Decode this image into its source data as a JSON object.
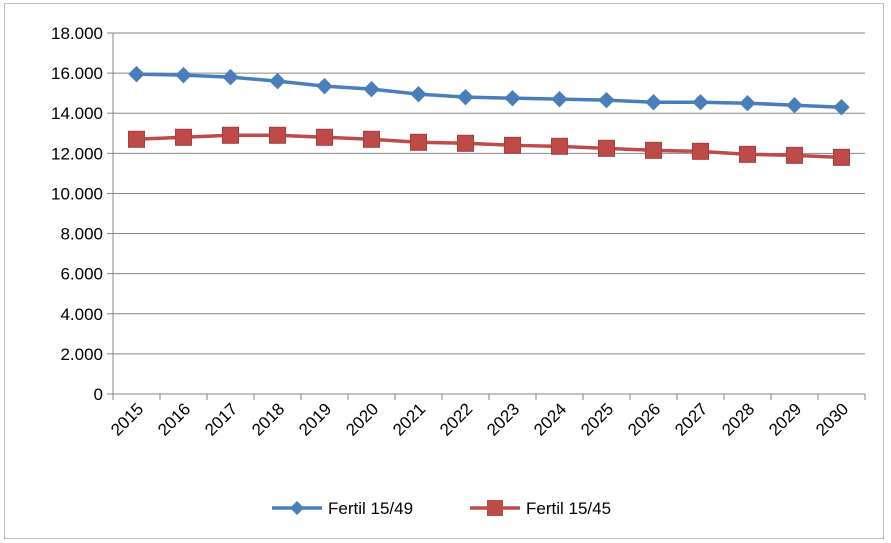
{
  "chart_data": {
    "type": "line",
    "title": "",
    "xlabel": "",
    "ylabel": "",
    "x": [
      "2015",
      "2016",
      "2017",
      "2018",
      "2019",
      "2020",
      "2021",
      "2022",
      "2023",
      "2024",
      "2025",
      "2026",
      "2027",
      "2028",
      "2029",
      "2030"
    ],
    "ylim": [
      0,
      18000
    ],
    "yticks": [
      "0",
      "2.000",
      "4.000",
      "6.000",
      "8.000",
      "10.000",
      "12.000",
      "14.000",
      "16.000",
      "18.000"
    ],
    "ytick_values": [
      0,
      2000,
      4000,
      6000,
      8000,
      10000,
      12000,
      14000,
      16000,
      18000
    ],
    "grid": true,
    "legend_position": "bottom",
    "series": [
      {
        "name": "Fertil 15/49",
        "color": "#4a7ebb",
        "marker": "diamond",
        "values": [
          15950,
          15900,
          15800,
          15600,
          15350,
          15200,
          14950,
          14800,
          14750,
          14700,
          14650,
          14550,
          14550,
          14500,
          14400,
          14300
        ]
      },
      {
        "name": "Fertil 15/45",
        "color": "#be4b48",
        "marker": "square",
        "values": [
          12700,
          12800,
          12900,
          12900,
          12800,
          12700,
          12550,
          12500,
          12400,
          12350,
          12250,
          12150,
          12100,
          11950,
          11900,
          11800
        ]
      }
    ]
  }
}
